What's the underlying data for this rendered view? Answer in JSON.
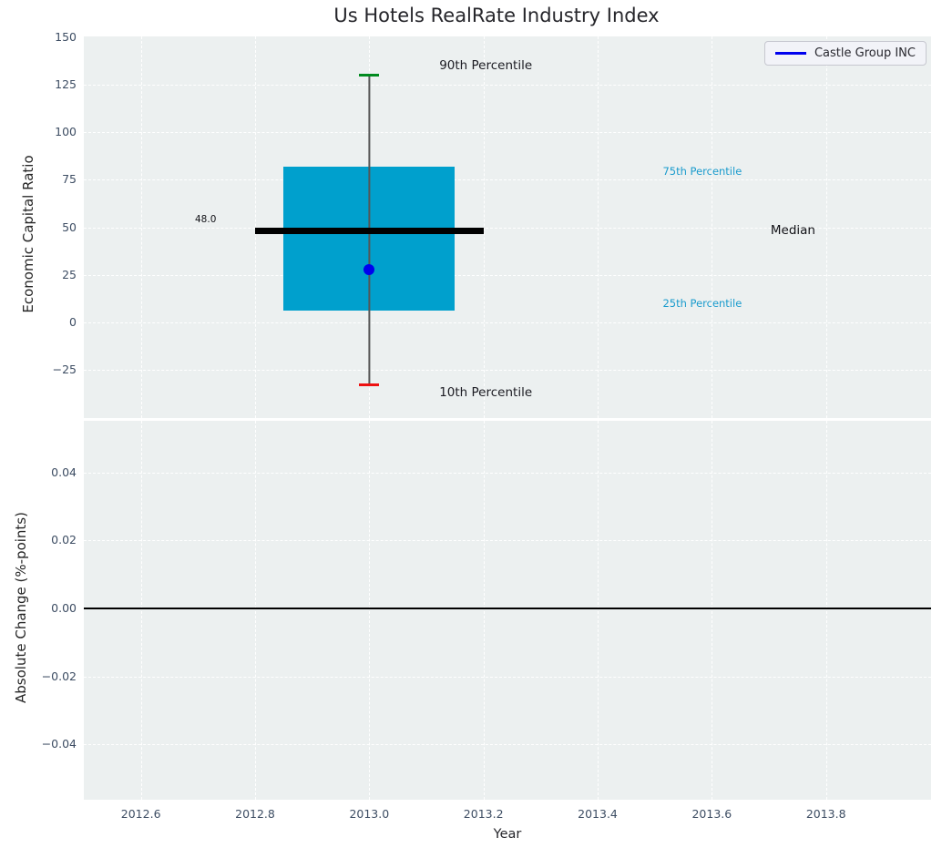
{
  "legend": {
    "label": "Castle Group INC"
  },
  "colors": {
    "axes_background": "#ecf0f0",
    "grid": "#ffffff",
    "box_fill": "#00a0cd",
    "median_line": "#000000",
    "whisker_line": "#555555",
    "cap_top": "#008a1f",
    "cap_bottom": "#ee1111",
    "company_point": "#0000ee",
    "legend_line": "#0000ee",
    "tick_text": "#3d4d63",
    "axis_label_text": "#262626",
    "percentile_text": "#1a9bcd",
    "zero_line": "#000000"
  },
  "chart_data": {
    "type": "boxplot",
    "title": "Us Hotels RealRate Industry Index",
    "xlabel": "Year",
    "x_range": [
      2012.5,
      2013.984
    ],
    "x_ticks": [
      {
        "label": "2012.6",
        "value": 2012.6
      },
      {
        "label": "2012.8",
        "value": 2012.8
      },
      {
        "label": "2013.0",
        "value": 2013.0
      },
      {
        "label": "2013.2",
        "value": 2013.2
      },
      {
        "label": "2013.4",
        "value": 2013.4
      },
      {
        "label": "2013.6",
        "value": 2013.6
      },
      {
        "label": "2013.8",
        "value": 2013.8
      }
    ],
    "grid": true,
    "legend_position": "upper right",
    "subplots": [
      {
        "name": "economic-capital-ratio",
        "ylabel": "Economic Capital Ratio",
        "ylim": [
          -50.3,
          150.4
        ],
        "y_ticks": [
          {
            "label": "150",
            "value": 150
          },
          {
            "label": "125",
            "value": 125
          },
          {
            "label": "100",
            "value": 100
          },
          {
            "label": "75",
            "value": 75
          },
          {
            "label": "50",
            "value": 50
          },
          {
            "label": "25",
            "value": 25
          },
          {
            "label": "0",
            "value": 0
          },
          {
            "label": "−25",
            "value": -25
          }
        ],
        "box": {
          "x": 2013.0,
          "box_x_span": [
            2012.85,
            2013.15
          ],
          "median": 48.0,
          "median_label": "48.0",
          "median_line_x_span": [
            2012.8,
            2013.2
          ],
          "q1": 6,
          "q3": 82,
          "p10": -33,
          "p90": 130
        },
        "company_point": {
          "name": "Castle Group INC",
          "x": 2013.0,
          "y": 28
        },
        "annotations": [
          {
            "name": "p90-label",
            "text": "90th Percentile",
            "x": 2013.204,
            "y": 135,
            "halign": "center",
            "color": "#1b1b22",
            "size": 13.5
          },
          {
            "name": "p10-label",
            "text": "10th Percentile",
            "x": 2013.204,
            "y": -37,
            "halign": "center",
            "color": "#1b1b22",
            "size": 13.5
          },
          {
            "name": "p75-label",
            "text": "75th Percentile",
            "x": 2013.514,
            "y": 79.5,
            "halign": "left",
            "color": "#1a9bcd",
            "size": 11.5
          },
          {
            "name": "p25-label",
            "text": "25th Percentile",
            "x": 2013.514,
            "y": 10,
            "halign": "left",
            "color": "#1a9bcd",
            "size": 11.5
          },
          {
            "name": "median-label",
            "text": "Median",
            "x": 2013.703,
            "y": 48.4,
            "halign": "left",
            "color": "#111116",
            "size": 13.5
          },
          {
            "name": "median-value-label",
            "text": "48.0",
            "x": 2012.732,
            "y": 54,
            "halign": "right",
            "color": "#111116",
            "size": 10.5
          }
        ]
      },
      {
        "name": "absolute-change",
        "ylabel": "Absolute Change (%-points)",
        "ylim": [
          -0.0563,
          0.0552
        ],
        "y_ticks": [
          {
            "label": "0.04",
            "value": 0.04
          },
          {
            "label": "0.02",
            "value": 0.02
          },
          {
            "label": "0.00",
            "value": 0.0
          },
          {
            "label": "−0.02",
            "value": -0.02
          },
          {
            "label": "−0.04",
            "value": -0.04
          }
        ],
        "zero_line": 0.0,
        "series": []
      }
    ]
  }
}
